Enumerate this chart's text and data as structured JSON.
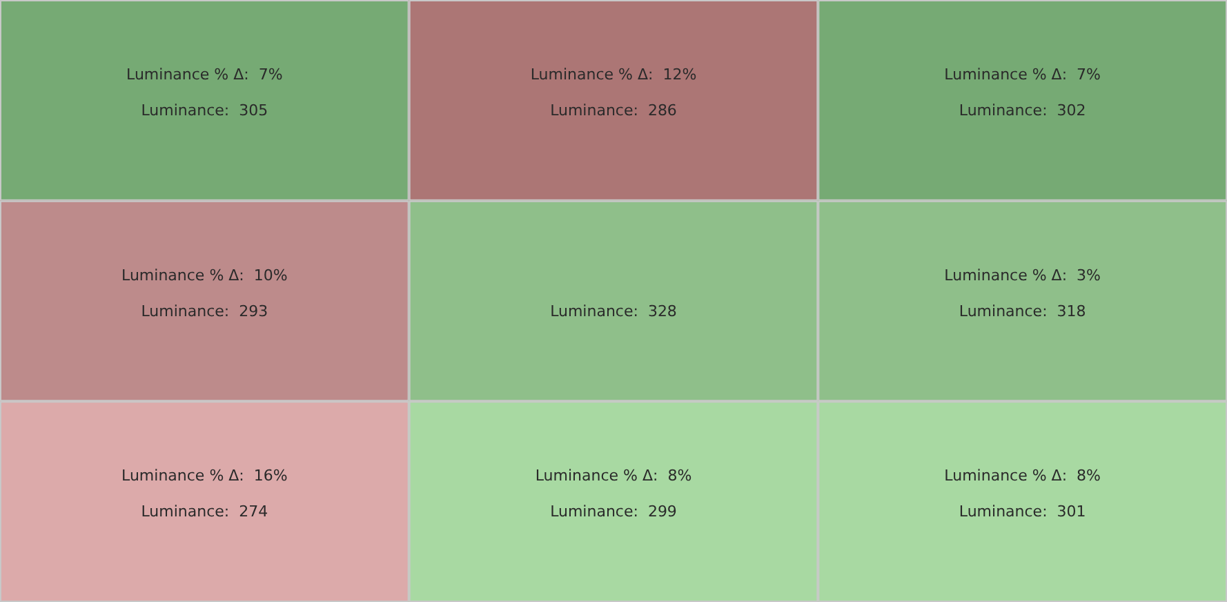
{
  "chart_data": {
    "type": "heatmap",
    "categories": [
      null,
      null,
      null
    ],
    "y_categories": [
      null,
      null,
      null
    ],
    "cells": [
      [
        305,
        286,
        302
      ],
      [
        293,
        328,
        318
      ],
      [
        274,
        299,
        301
      ]
    ],
    "cell_labels": [
      [
        "Luminance:  305",
        "Luminance:  286",
        "Luminance:  302"
      ],
      [
        "Luminance:  293",
        "Luminance:  328",
        "Luminance:  318"
      ],
      [
        "Luminance:  274",
        "Luminance:  299",
        "Luminance:  301"
      ]
    ],
    "annotations": [
      "Luminance % Δ:  7%",
      "Luminance % Δ:  12%",
      "Luminance % Δ:  7%",
      "Luminance % Δ:  10%",
      null,
      "Luminance % Δ:  3%",
      "Luminance % Δ:  16%",
      "Luminance % Δ:  8%",
      "Luminance % Δ:  8%"
    ],
    "colors": [
      [
        "#76aa74",
        "#ac7675",
        "#76aa74"
      ],
      [
        "#bd8b8b",
        "#8fbf8a",
        "#8fbf8a"
      ],
      [
        "#dcaaaa",
        "#a8d9a2",
        "#a8d9a2"
      ]
    ]
  }
}
